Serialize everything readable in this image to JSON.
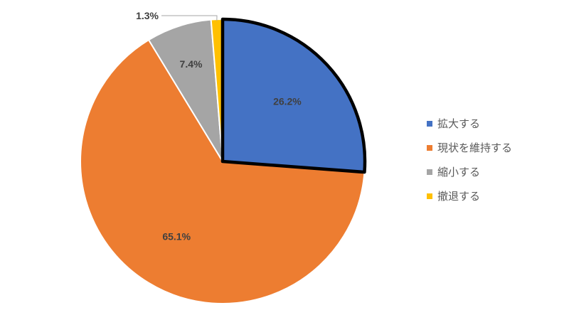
{
  "chart_data": {
    "type": "pie",
    "categories": [
      "拡大する",
      "現状を維持する",
      "縮小する",
      "撤退する"
    ],
    "values": [
      26.2,
      65.1,
      7.4,
      1.3
    ],
    "data_labels": [
      "26.2%",
      "65.1%",
      "7.4%",
      "1.3%"
    ],
    "colors": [
      "#4472C4",
      "#ED7D31",
      "#A5A5A5",
      "#FFC000"
    ],
    "highlighted_slice": "拡大する",
    "legend_position": "right",
    "start_angle": "12 o'clock, clockwise"
  }
}
